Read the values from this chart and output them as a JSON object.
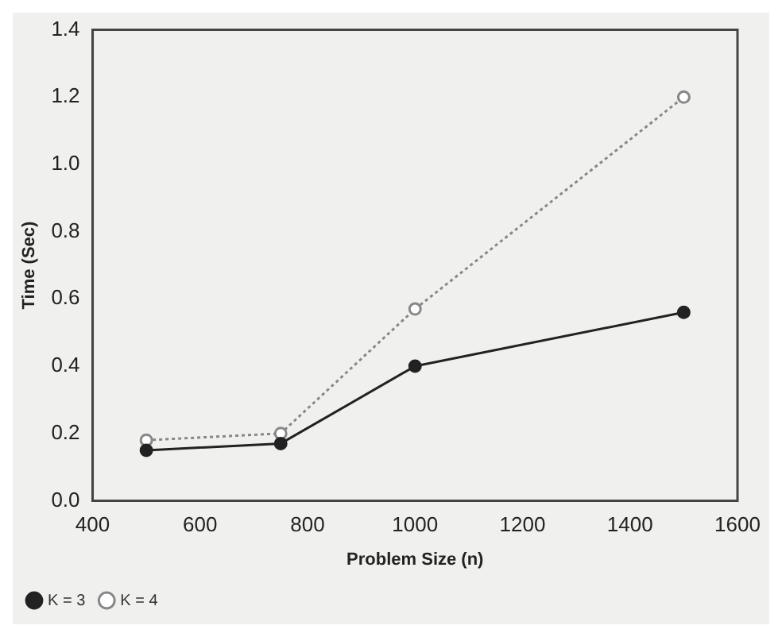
{
  "chart_data": {
    "type": "line",
    "xlabel": "Problem Size (n)",
    "ylabel": "Time (Sec)",
    "x": [
      500,
      750,
      1000,
      1500
    ],
    "series": [
      {
        "name": "K = 3",
        "color": "#222222",
        "values": [
          0.15,
          0.17,
          0.4,
          0.56
        ],
        "marker": "circle",
        "line_style": "solid"
      },
      {
        "name": "K = 4",
        "color": "#888888",
        "values": [
          0.18,
          0.2,
          0.57,
          1.2
        ],
        "marker": "circle",
        "line_style": "dotted"
      }
    ],
    "xlim": [
      400,
      1600
    ],
    "xticks": [
      400,
      600,
      800,
      1000,
      1200,
      1400,
      1600
    ],
    "ylim": [
      0,
      1.4
    ],
    "yticks": [
      {
        "value": 0,
        "label": "0.0"
      },
      {
        "value": 0.2,
        "label": "0.2"
      },
      {
        "value": 0.4,
        "label": "0.4"
      },
      {
        "value": 0.6,
        "label": "0.6"
      },
      {
        "value": 0.8,
        "label": "0.8"
      },
      {
        "value": 1,
        "label": "1.0"
      },
      {
        "value": 1.2,
        "label": "1.2"
      },
      {
        "value": 1.4,
        "label": "1.4"
      }
    ],
    "grid": false,
    "legend": "bottom left"
  }
}
